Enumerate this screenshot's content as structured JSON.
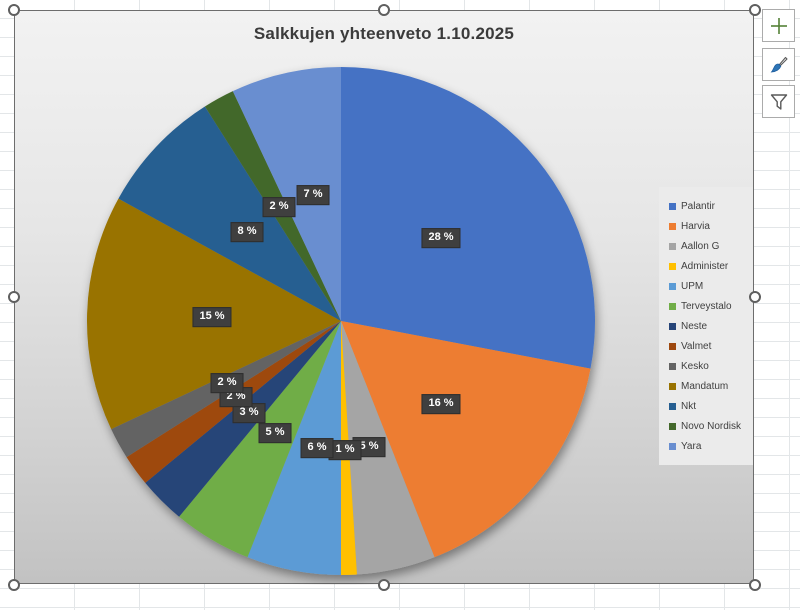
{
  "chart_data": {
    "type": "pie",
    "title": "Salkkujen yhteenveto 1.10.2025",
    "categories": [
      "Palantir",
      "Harvia",
      "Aallon G",
      "Administer",
      "UPM",
      "Terveystalo",
      "Neste",
      "Valmet",
      "Kesko",
      "Mandatum",
      "Nkt",
      "Novo Nordisk",
      "Yara"
    ],
    "values": [
      28,
      16,
      5,
      1,
      6,
      5,
      3,
      2,
      2,
      15,
      8,
      2,
      7
    ],
    "labels": [
      "28 %",
      "16 %",
      "5 %",
      "1 %",
      "6 %",
      "5 %",
      "3 %",
      "2 %",
      "2 %",
      "15 %",
      "8 %",
      "2 %",
      "7 %"
    ],
    "colors": [
      "#4472C4",
      "#ED7D31",
      "#A5A5A5",
      "#FFC000",
      "#5B9BD5",
      "#70AD47",
      "#264478",
      "#9E480E",
      "#636363",
      "#997300",
      "#255E91",
      "#43682B",
      "#698ED0"
    ],
    "unit": "%",
    "legend_position": "right",
    "start_angle_deg": 0,
    "direction": "clockwise",
    "label_radius_fraction": 0.51,
    "data_label_style": {
      "background": "#3F3F3F",
      "text_color": "#FFFFFF"
    }
  },
  "side_toolbar": {
    "buttons": [
      {
        "name": "chart-elements-button",
        "icon": "plus-icon",
        "icon_color": "#538135"
      },
      {
        "name": "chart-styles-button",
        "icon": "paintbrush-icon",
        "icon_color": "#2E75B6"
      },
      {
        "name": "chart-filters-button",
        "icon": "funnel-icon",
        "icon_color": "#595959"
      }
    ]
  }
}
